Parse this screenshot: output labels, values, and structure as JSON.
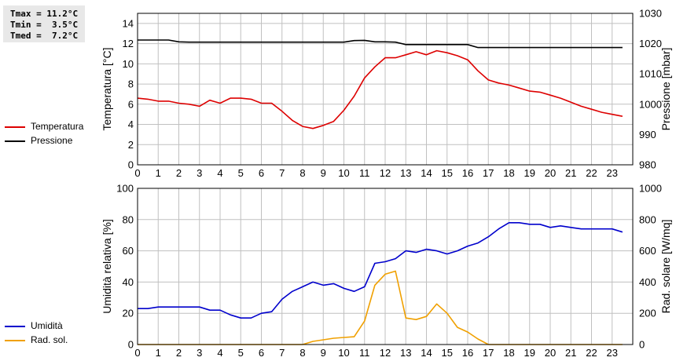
{
  "stats": {
    "tmax": "Tmax = 11.2°C",
    "tmin": "Tmin =  3.5°C",
    "tmed": "Tmed =  7.2°C"
  },
  "colors": {
    "temperatura": "#dd0000",
    "pressione": "#000000",
    "umidita": "#0000cc",
    "rad_sol": "#f0a000",
    "grid": "#c0c0c0"
  },
  "chart_data": [
    {
      "type": "line",
      "xlim": [
        0,
        24
      ],
      "x_ticks": [
        0,
        1,
        2,
        3,
        4,
        5,
        6,
        7,
        8,
        9,
        10,
        11,
        12,
        13,
        14,
        15,
        16,
        17,
        18,
        19,
        20,
        21,
        22,
        23
      ],
      "ylabel_left": "Temperatura [°C]",
      "ylim_left": [
        0,
        15
      ],
      "yticks_left": [
        0,
        2,
        4,
        6,
        8,
        10,
        12,
        14
      ],
      "ylabel_right": "Pressione [mbar]",
      "ylim_right": [
        980,
        1030
      ],
      "yticks_right": [
        980,
        990,
        1000,
        1010,
        1020,
        1030
      ],
      "grid": true,
      "legend_position": "left",
      "series": [
        {
          "name": "Temperatura",
          "axis": "left",
          "color": "#dd0000",
          "x": [
            0,
            0.5,
            1,
            1.5,
            2,
            2.5,
            3,
            3.5,
            4,
            4.5,
            5,
            5.5,
            6,
            6.5,
            7,
            7.5,
            8,
            8.5,
            9,
            9.5,
            10,
            10.5,
            11,
            11.5,
            12,
            12.5,
            13,
            13.5,
            14,
            14.5,
            15,
            15.5,
            16,
            16.5,
            17,
            17.5,
            18,
            18.5,
            19,
            19.5,
            20,
            20.5,
            21,
            21.5,
            22,
            22.5,
            23,
            23.5
          ],
          "y": [
            6.6,
            6.5,
            6.3,
            6.3,
            6.1,
            6.0,
            5.8,
            6.4,
            6.1,
            6.6,
            6.6,
            6.5,
            6.1,
            6.1,
            5.3,
            4.4,
            3.8,
            3.6,
            3.9,
            4.3,
            5.4,
            6.8,
            8.6,
            9.7,
            10.6,
            10.6,
            10.9,
            11.2,
            10.9,
            11.3,
            11.1,
            10.8,
            10.4,
            9.3,
            8.4,
            8.1,
            7.9,
            7.6,
            7.3,
            7.2,
            6.9,
            6.6,
            6.2,
            5.8,
            5.5,
            5.2,
            5.0,
            4.8
          ]
        },
        {
          "name": "Pressione",
          "axis": "right",
          "color": "#000000",
          "x": [
            0,
            0.5,
            1,
            1.5,
            2,
            2.5,
            3,
            3.5,
            4,
            4.5,
            5,
            5.5,
            6,
            6.5,
            7,
            7.5,
            8,
            8.5,
            9,
            9.5,
            10,
            10.5,
            11,
            11.5,
            12,
            12.5,
            13,
            13.5,
            14,
            14.5,
            15,
            15.5,
            16,
            16.5,
            17,
            17.5,
            18,
            18.5,
            19,
            19.5,
            20,
            20.5,
            21,
            21.5,
            22,
            22.5,
            23,
            23.5
          ],
          "y": [
            1021.2,
            1021.2,
            1021.2,
            1021.2,
            1020.6,
            1020.5,
            1020.5,
            1020.5,
            1020.5,
            1020.5,
            1020.5,
            1020.5,
            1020.5,
            1020.5,
            1020.5,
            1020.5,
            1020.5,
            1020.5,
            1020.5,
            1020.5,
            1020.5,
            1021.0,
            1021.1,
            1020.6,
            1020.6,
            1020.5,
            1019.7,
            1019.7,
            1019.7,
            1019.7,
            1019.7,
            1019.7,
            1019.7,
            1018.7,
            1018.7,
            1018.7,
            1018.7,
            1018.7,
            1018.7,
            1018.7,
            1018.7,
            1018.7,
            1018.7,
            1018.7,
            1018.7,
            1018.7,
            1018.7,
            1018.7
          ]
        }
      ]
    },
    {
      "type": "line",
      "xlim": [
        0,
        24
      ],
      "x_ticks": [
        0,
        1,
        2,
        3,
        4,
        5,
        6,
        7,
        8,
        9,
        10,
        11,
        12,
        13,
        14,
        15,
        16,
        17,
        18,
        19,
        20,
        21,
        22,
        23
      ],
      "ylabel_left": "Umidità relativa [%]",
      "ylim_left": [
        0,
        100
      ],
      "yticks_left": [
        0,
        20,
        40,
        60,
        80,
        100
      ],
      "ylabel_right": "Rad. solare [W/mq]",
      "ylim_right": [
        0,
        1000
      ],
      "yticks_right": [
        0,
        200,
        400,
        600,
        800,
        1000
      ],
      "grid": true,
      "legend_position": "left",
      "series": [
        {
          "name": "Umidità",
          "axis": "left",
          "color": "#0000cc",
          "x": [
            0,
            0.5,
            1,
            1.5,
            2,
            2.5,
            3,
            3.5,
            4,
            4.5,
            5,
            5.5,
            6,
            6.5,
            7,
            7.5,
            8,
            8.5,
            9,
            9.5,
            10,
            10.5,
            11,
            11.5,
            12,
            12.5,
            13,
            13.5,
            14,
            14.5,
            15,
            15.5,
            16,
            16.5,
            17,
            17.5,
            18,
            18.5,
            19,
            19.5,
            20,
            20.5,
            21,
            21.5,
            22,
            22.5,
            23,
            23.5
          ],
          "y": [
            23,
            23,
            24,
            24,
            24,
            24,
            24,
            22,
            22,
            19,
            17,
            17,
            20,
            21,
            29,
            34,
            37,
            40,
            38,
            39,
            36,
            34,
            37,
            52,
            53,
            55,
            60,
            59,
            61,
            60,
            58,
            60,
            63,
            65,
            69,
            74,
            78,
            78,
            77,
            77,
            75,
            76,
            75,
            74,
            74,
            74,
            74,
            72
          ]
        },
        {
          "name": "Rad. sol.",
          "axis": "right",
          "color": "#f0a000",
          "x": [
            0,
            0.5,
            1,
            1.5,
            2,
            2.5,
            3,
            3.5,
            4,
            4.5,
            5,
            5.5,
            6,
            6.5,
            7,
            7.5,
            8,
            8.5,
            9,
            9.5,
            10,
            10.5,
            11,
            11.5,
            12,
            12.5,
            13,
            13.5,
            14,
            14.5,
            15,
            15.5,
            16,
            16.5,
            17,
            17.5,
            18,
            18.5,
            19,
            19.5,
            20,
            20.5,
            21,
            21.5,
            22,
            22.5,
            23,
            23.5
          ],
          "y": [
            0,
            0,
            0,
            0,
            0,
            0,
            0,
            0,
            0,
            0,
            0,
            0,
            0,
            0,
            0,
            0,
            0,
            20,
            30,
            40,
            45,
            50,
            150,
            380,
            450,
            470,
            170,
            160,
            180,
            260,
            200,
            110,
            80,
            35,
            0,
            0,
            0,
            0,
            0,
            0,
            0,
            0,
            0,
            0,
            0,
            0,
            0,
            0
          ]
        }
      ]
    }
  ]
}
